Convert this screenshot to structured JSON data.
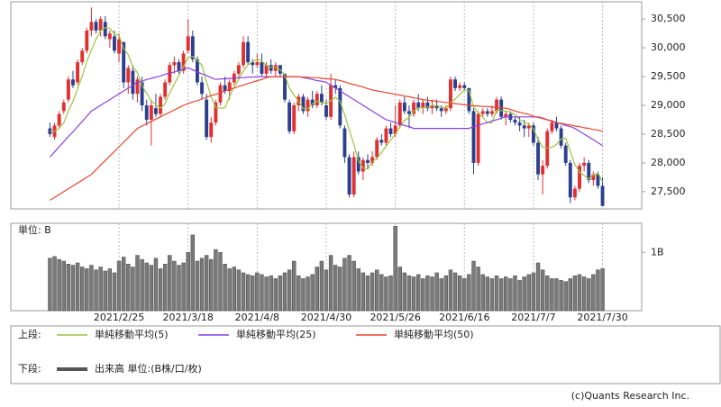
{
  "chart_data": [
    {
      "type": "candlestick",
      "legend_label": "上段:",
      "categories": [
        null,
        null,
        null,
        null,
        null,
        null,
        null,
        null,
        null,
        null,
        null,
        null,
        null,
        null,
        null,
        "2021/2/25",
        null,
        null,
        null,
        null,
        null,
        null,
        null,
        null,
        null,
        null,
        null,
        null,
        null,
        null,
        "2021/3/18",
        null,
        null,
        null,
        null,
        null,
        null,
        null,
        null,
        null,
        null,
        null,
        null,
        null,
        null,
        "2021/4/8",
        null,
        null,
        null,
        null,
        null,
        null,
        null,
        null,
        null,
        null,
        null,
        null,
        null,
        null,
        "2021/4/30",
        null,
        null,
        null,
        null,
        null,
        null,
        null,
        null,
        null,
        null,
        null,
        null,
        null,
        null,
        "2021/5/26",
        null,
        null,
        null,
        null,
        null,
        null,
        null,
        null,
        null,
        null,
        null,
        null,
        null,
        null,
        "2021/6/16",
        null,
        null,
        null,
        null,
        null,
        null,
        null,
        null,
        null,
        null,
        null,
        null,
        null,
        null,
        "2021/7/7",
        null,
        null,
        null,
        null,
        null,
        null,
        null,
        null,
        null,
        null,
        null,
        null,
        null,
        null,
        "2021/7/30"
      ],
      "open": [
        28600,
        28450,
        28650,
        28900,
        29100,
        29450,
        29400,
        29750,
        29950,
        30300,
        30450,
        30300,
        30450,
        30150,
        30200,
        29900,
        30100,
        29400,
        29600,
        29200,
        29400,
        29000,
        28750,
        28950,
        28850,
        29150,
        29400,
        29700,
        29750,
        29600,
        29950,
        30200,
        29800,
        29400,
        29100,
        28450,
        28700,
        29050,
        29350,
        29250,
        29400,
        29550,
        29700,
        30100,
        29750,
        29700,
        29750,
        29550,
        29700,
        29600,
        29700,
        29550,
        29050,
        28550,
        29000,
        29150,
        28900,
        29100,
        29000,
        29200,
        29000,
        28800,
        29350,
        29300,
        28600,
        28100,
        27450,
        28100,
        27850,
        28050,
        28000,
        28100,
        28400,
        28350,
        28600,
        28500,
        28650,
        29050,
        28900,
        28850,
        29050,
        28950,
        29050,
        28950,
        29000,
        28950,
        28900,
        28950,
        29450,
        29300,
        29350,
        29300,
        28900,
        28000,
        28850,
        28900,
        28850,
        28900,
        29100,
        28800,
        28850,
        28750,
        28700,
        28650,
        28600,
        28650,
        28350,
        27800,
        27950,
        28550,
        28700,
        28600,
        28300,
        28000,
        27400,
        27550,
        27950,
        28000,
        27700,
        27800,
        27600
      ],
      "high": [
        28700,
        28700,
        28900,
        29100,
        29500,
        29600,
        29800,
        30000,
        30350,
        30700,
        30500,
        30550,
        30550,
        30300,
        30300,
        30250,
        30100,
        29700,
        29700,
        29500,
        29500,
        29100,
        29100,
        29200,
        29200,
        29450,
        29750,
        29850,
        29800,
        29950,
        30500,
        30300,
        29850,
        29500,
        29200,
        28800,
        29100,
        29400,
        29500,
        29450,
        29600,
        29750,
        30200,
        30200,
        29800,
        29900,
        29900,
        29750,
        29800,
        29750,
        29700,
        29550,
        29100,
        29050,
        29200,
        29200,
        29150,
        29250,
        29250,
        29350,
        29100,
        29550,
        29450,
        29350,
        28650,
        28150,
        28200,
        28200,
        28100,
        28150,
        28200,
        28450,
        28500,
        28650,
        28700,
        29000,
        29100,
        29150,
        29000,
        29100,
        29200,
        29100,
        29150,
        29100,
        29100,
        29000,
        29000,
        29500,
        29500,
        29400,
        29400,
        29300,
        28950,
        28900,
        28950,
        28950,
        29000,
        29150,
        29150,
        28900,
        28900,
        28800,
        28800,
        28750,
        28700,
        28700,
        28450,
        28050,
        28600,
        28750,
        28800,
        28650,
        28350,
        28050,
        27600,
        28000,
        28100,
        28050,
        27850,
        27850,
        27750
      ],
      "low": [
        28450,
        28400,
        28600,
        28850,
        29050,
        29300,
        29350,
        29700,
        29900,
        30200,
        30250,
        30200,
        30150,
        30000,
        29900,
        29750,
        29300,
        29200,
        29100,
        29050,
        28900,
        28650,
        28300,
        28800,
        28800,
        29100,
        29350,
        29550,
        29550,
        29550,
        29900,
        29750,
        29350,
        29100,
        28400,
        28350,
        28650,
        29000,
        29200,
        29100,
        29350,
        29450,
        29650,
        29700,
        29550,
        29650,
        29500,
        29500,
        29550,
        29500,
        29500,
        29050,
        28500,
        28500,
        28900,
        28850,
        28800,
        28950,
        28950,
        29000,
        28750,
        28750,
        29200,
        28600,
        28000,
        27400,
        27400,
        27800,
        27700,
        27900,
        27950,
        28050,
        28300,
        28300,
        28450,
        28450,
        28600,
        28850,
        28600,
        28800,
        28900,
        28850,
        28900,
        28850,
        28900,
        28800,
        28850,
        28900,
        29250,
        29250,
        29250,
        28850,
        27800,
        27950,
        28800,
        28800,
        28800,
        28850,
        28750,
        28650,
        28700,
        28650,
        28550,
        28450,
        28450,
        28300,
        27700,
        27450,
        27900,
        28500,
        28550,
        28250,
        27950,
        27300,
        27350,
        27500,
        27850,
        27650,
        27600,
        27550,
        27250
      ],
      "close": [
        28500,
        28650,
        28850,
        29050,
        29450,
        29350,
        29750,
        29950,
        30300,
        30450,
        30300,
        30500,
        30200,
        30250,
        29950,
        30150,
        29400,
        29650,
        29200,
        29450,
        29000,
        28750,
        29000,
        28850,
        29150,
        29400,
        29700,
        29750,
        29600,
        29900,
        30200,
        29800,
        29400,
        29200,
        28450,
        28700,
        29050,
        29350,
        29250,
        29400,
        29550,
        29700,
        30100,
        29750,
        29700,
        29750,
        29550,
        29700,
        29600,
        29700,
        29550,
        29100,
        28550,
        29000,
        29150,
        28900,
        29100,
        29000,
        29200,
        29050,
        28800,
        29350,
        29300,
        28650,
        28100,
        27450,
        28100,
        27850,
        28050,
        28000,
        28100,
        28400,
        28350,
        28600,
        28500,
        28650,
        29050,
        28900,
        28850,
        29050,
        28950,
        29050,
        28950,
        29000,
        28950,
        28900,
        28950,
        29450,
        29300,
        29350,
        29300,
        28900,
        28000,
        28850,
        28900,
        28850,
        28900,
        29100,
        28800,
        28850,
        28750,
        28700,
        28650,
        28600,
        28650,
        28350,
        27800,
        27950,
        28550,
        28700,
        28600,
        28300,
        28000,
        27400,
        27550,
        27950,
        28000,
        27700,
        27800,
        27600,
        27250
      ],
      "up_color": "#e03030",
      "down_color": "#2a3f8f",
      "series": [
        {
          "name": "単純移動平均(5)",
          "color": "#9cc43c",
          "values": [
            28550,
            28550,
            28600,
            28700,
            28900,
            29070,
            29290,
            29510,
            29760,
            29960,
            30150,
            30300,
            30350,
            30340,
            30240,
            30210,
            29990,
            29880,
            29670,
            29570,
            29340,
            29210,
            29080,
            29010,
            28950,
            29030,
            29220,
            29370,
            29520,
            29670,
            29830,
            29850,
            29780,
            29700,
            29410,
            29150,
            28960,
            28950,
            28960,
            29150,
            29320,
            29450,
            29600,
            29700,
            29760,
            29800,
            29770,
            29690,
            29660,
            29660,
            29620,
            29530,
            29300,
            29180,
            29070,
            28940,
            28940,
            29030,
            29070,
            29050,
            29030,
            29080,
            29140,
            29070,
            28840,
            28570,
            28320,
            28030,
            27910,
            27890,
            28020,
            28080,
            28180,
            28290,
            28390,
            28500,
            28630,
            28740,
            28790,
            28900,
            28960,
            28960,
            28970,
            29000,
            28990,
            28970,
            28950,
            29050,
            29110,
            29190,
            29270,
            29260,
            28970,
            28880,
            28790,
            28700,
            28700,
            28920,
            28910,
            28900,
            28880,
            28840,
            28750,
            28710,
            28670,
            28590,
            28410,
            28270,
            28260,
            28270,
            28320,
            28420,
            28430,
            28200,
            27970,
            27840,
            27780,
            27720,
            27790,
            27820,
            27670
          ]
        },
        {
          "name": "単純移動平均(25)",
          "color": "#8a3fe0",
          "values": [
            28100,
            28190,
            28280,
            28370,
            28460,
            28540,
            28630,
            28720,
            28810,
            28900,
            28950,
            29000,
            29050,
            29100,
            29150,
            29200,
            29250,
            29300,
            29350,
            29400,
            29420,
            29450,
            29470,
            29490,
            29510,
            29540,
            29560,
            29580,
            29600,
            29630,
            29650,
            29620,
            29580,
            29550,
            29520,
            29480,
            29450,
            29460,
            29460,
            29470,
            29470,
            29480,
            29480,
            29490,
            29490,
            29500,
            29500,
            29500,
            29500,
            29500,
            29500,
            29500,
            29500,
            29500,
            29500,
            29480,
            29470,
            29450,
            29430,
            29420,
            29400,
            29350,
            29300,
            29250,
            29200,
            29150,
            29100,
            29050,
            29000,
            28950,
            28900,
            28850,
            28800,
            28750,
            28730,
            28700,
            28680,
            28650,
            28630,
            28600,
            28600,
            28600,
            28600,
            28600,
            28600,
            28600,
            28600,
            28600,
            28600,
            28600,
            28600,
            28600,
            28630,
            28650,
            28680,
            28700,
            28730,
            28750,
            28780,
            28800,
            28800,
            28800,
            28800,
            28800,
            28800,
            28800,
            28800,
            28780,
            28750,
            28730,
            28700,
            28680,
            28650,
            28630,
            28600,
            28550,
            28500,
            28450,
            28400,
            28350,
            28300
          ]
        },
        {
          "name": "単純移動平均(50)",
          "color": "#e8452c",
          "values": [
            27350,
            27400,
            27450,
            27500,
            27550,
            27600,
            27650,
            27700,
            27750,
            27800,
            27880,
            27960,
            28040,
            28120,
            28200,
            28280,
            28360,
            28440,
            28520,
            28600,
            28640,
            28680,
            28720,
            28760,
            28800,
            28840,
            28880,
            28920,
            28960,
            29000,
            29030,
            29060,
            29080,
            29110,
            29140,
            29170,
            29190,
            29220,
            29250,
            29280,
            29300,
            29330,
            29350,
            29380,
            29400,
            29430,
            29450,
            29480,
            29500,
            29500,
            29500,
            29500,
            29500,
            29500,
            29500,
            29490,
            29490,
            29480,
            29480,
            29470,
            29460,
            29460,
            29450,
            29430,
            29410,
            29380,
            29360,
            29340,
            29320,
            29290,
            29270,
            29250,
            29240,
            29220,
            29210,
            29190,
            29180,
            29160,
            29150,
            29130,
            29120,
            29100,
            29090,
            29080,
            29070,
            29060,
            29050,
            29040,
            29030,
            29020,
            29010,
            29000,
            28990,
            28990,
            28980,
            28980,
            28970,
            28960,
            28960,
            28950,
            28930,
            28900,
            28880,
            28860,
            28840,
            28810,
            28790,
            28770,
            28750,
            28720,
            28700,
            28690,
            28670,
            28660,
            28640,
            28630,
            28610,
            28600,
            28580,
            28570,
            28550
          ]
        }
      ],
      "ylim": [
        27200,
        30800
      ],
      "yticks": [
        {
          "value": 27500,
          "label": "27,500"
        },
        {
          "value": 28000,
          "label": "28,000"
        },
        {
          "value": 28500,
          "label": "28,500"
        },
        {
          "value": 29000,
          "label": "29,000"
        },
        {
          "value": 29500,
          "label": "29,500"
        },
        {
          "value": 30000,
          "label": "30,000"
        },
        {
          "value": 30500,
          "label": "30,500"
        }
      ]
    },
    {
      "type": "bar",
      "legend_label": "下段:",
      "unit_label": "単位: B",
      "name": "出来高 単位:(B株/口/枚)",
      "color": "#7a7a7a",
      "values": [
        0.9,
        0.93,
        0.88,
        0.85,
        0.8,
        0.78,
        0.82,
        0.75,
        0.72,
        0.78,
        0.7,
        0.75,
        0.68,
        0.72,
        0.65,
        0.85,
        0.92,
        0.8,
        0.75,
        0.95,
        0.88,
        0.82,
        0.78,
        0.9,
        0.72,
        0.8,
        0.95,
        0.85,
        0.78,
        0.82,
        1.0,
        1.3,
        0.85,
        0.9,
        0.95,
        0.88,
        1.05,
        1.0,
        0.8,
        0.72,
        0.75,
        0.7,
        0.65,
        0.62,
        0.6,
        0.65,
        0.62,
        0.58,
        0.6,
        0.55,
        0.6,
        0.65,
        0.7,
        0.85,
        0.6,
        0.55,
        0.58,
        0.62,
        0.75,
        0.85,
        0.7,
        0.95,
        0.78,
        0.75,
        0.9,
        0.95,
        0.85,
        0.72,
        0.65,
        0.6,
        0.65,
        0.7,
        0.62,
        0.58,
        0.6,
        1.45,
        0.75,
        0.65,
        0.6,
        0.58,
        0.62,
        0.55,
        0.6,
        0.58,
        0.65,
        0.55,
        0.6,
        0.7,
        0.65,
        0.6,
        0.55,
        0.62,
        0.85,
        0.75,
        0.62,
        0.58,
        0.55,
        0.6,
        0.55,
        0.58,
        0.55,
        0.6,
        0.52,
        0.58,
        0.62,
        0.65,
        0.82,
        0.7,
        0.6,
        0.55,
        0.55,
        0.52,
        0.5,
        0.55,
        0.6,
        0.62,
        0.58,
        0.55,
        0.62,
        0.7,
        0.72
      ],
      "ylim": [
        0,
        1.5
      ],
      "yticks": [
        {
          "value": 1,
          "label": "1B"
        }
      ]
    }
  ],
  "footer": "(c)Quants Research Inc."
}
